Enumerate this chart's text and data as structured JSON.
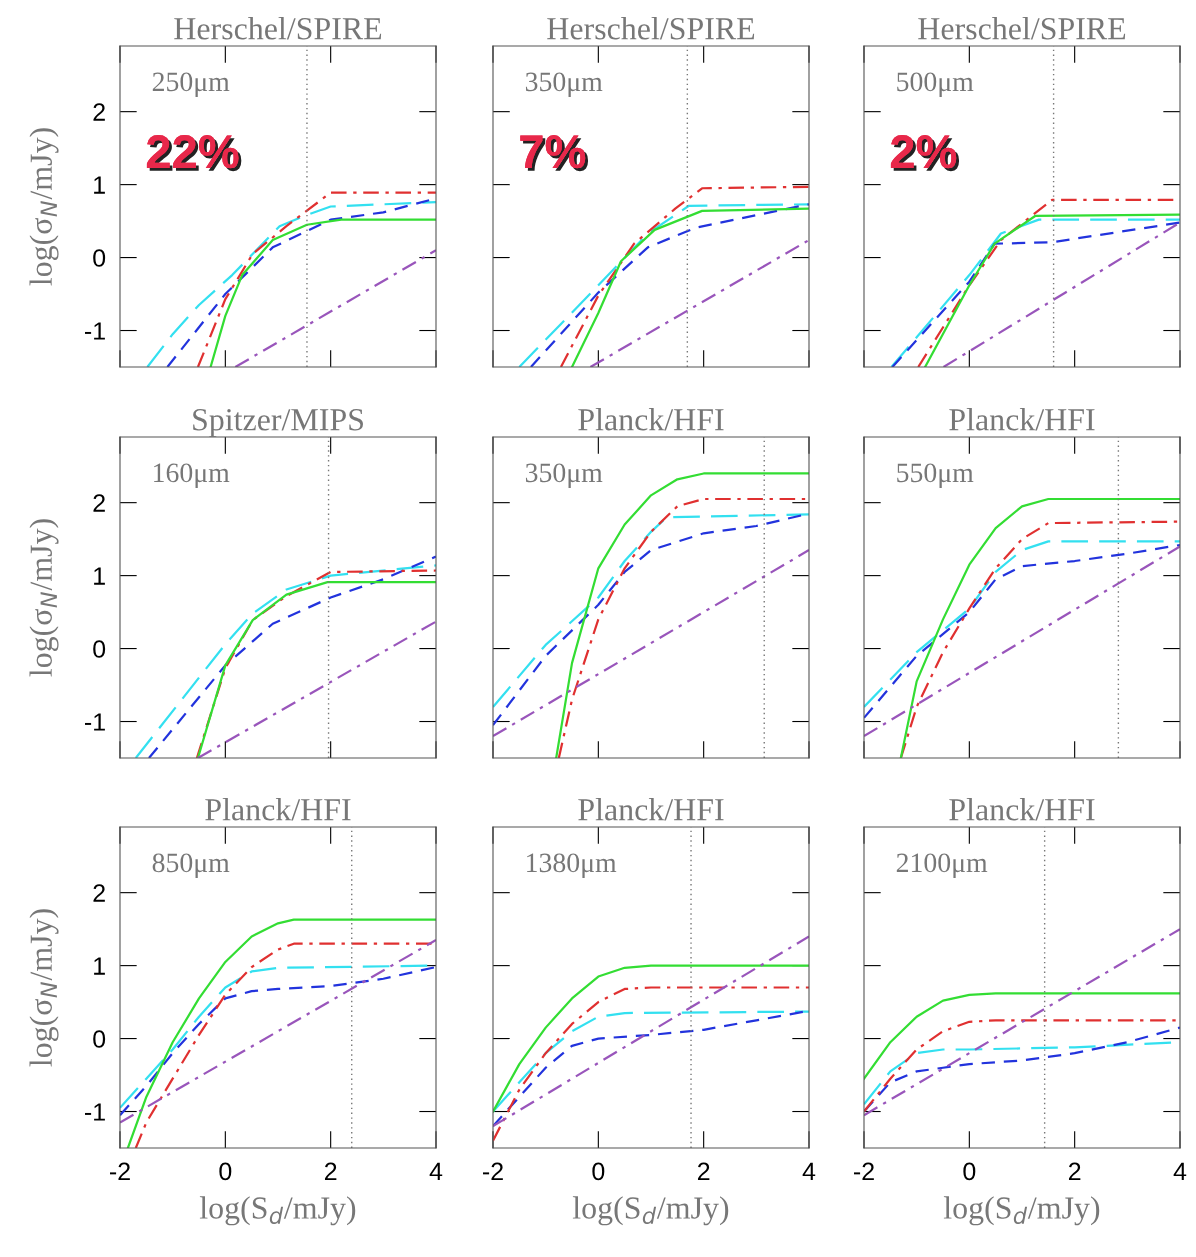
{
  "chart_data": [
    {
      "type": "line",
      "title": "Herschel/SPIRE",
      "ylabel": "log(σ$_{N}$/mJy)",
      "annotations": [
        "250μm",
        "22%"
      ],
      "xlim": [
        -2,
        4
      ],
      "ylim": [
        -1.5,
        2.9
      ],
      "xticks": [
        -2,
        0,
        2,
        4
      ],
      "yticks": [
        -1,
        0,
        1,
        2
      ],
      "tick_labels": "y",
      "ref_lines": [
        {
          "axis": "x",
          "value": 1.55,
          "color": "#777777",
          "line_style": "dotted"
        }
      ],
      "series": [
        {
          "color": "#33e0f0",
          "line_style": "longdashed",
          "x": [
            -1.48,
            -1,
            -0.5,
            0.13,
            1.03,
            1.5,
            2,
            4
          ],
          "values": [
            -1.5,
            -1.05,
            -0.65,
            -0.24,
            0.43,
            0.57,
            0.7,
            0.76
          ]
        },
        {
          "color": "#2233dd",
          "line_style": "dashed",
          "x": [
            -1.1,
            0,
            0.9,
            2,
            3,
            4
          ],
          "values": [
            -1.5,
            -0.5,
            0.14,
            0.52,
            0.62,
            0.81
          ]
        },
        {
          "color": "#e03030",
          "line_style": "dashdot",
          "x": [
            -0.52,
            0,
            0.52,
            1.16,
            2,
            4
          ],
          "values": [
            -1.5,
            -0.57,
            0.05,
            0.43,
            0.89,
            0.89
          ]
        },
        {
          "color": "#33dd33",
          "line_style": "solid",
          "x": [
            -0.28,
            0,
            0.32,
            0.9,
            1.55,
            2.2,
            4
          ],
          "values": [
            -1.5,
            -0.8,
            -0.24,
            0.24,
            0.45,
            0.52,
            0.52
          ]
        },
        {
          "color": "#9955bb",
          "line_style": "dashdot",
          "x": [
            0.19,
            4
          ],
          "values": [
            -1.5,
            0.1
          ]
        }
      ]
    },
    {
      "type": "line",
      "title": "Herschel/SPIRE",
      "annotations": [
        "350μm",
        "7%"
      ],
      "xlim": [
        -2,
        4
      ],
      "ylim": [
        -1.5,
        2.9
      ],
      "xticks": [
        -2,
        0,
        2,
        4
      ],
      "yticks": [
        -1,
        0,
        1,
        2
      ],
      "tick_labels": false,
      "ref_lines": [
        {
          "axis": "x",
          "value": 1.69,
          "color": "#777777",
          "line_style": "dotted"
        }
      ],
      "series": [
        {
          "color": "#33e0f0",
          "line_style": "longdashed",
          "x": [
            -1.5,
            0,
            0.94,
            1.72,
            4
          ],
          "values": [
            -1.5,
            -0.38,
            0.33,
            0.71,
            0.73
          ]
        },
        {
          "color": "#2233dd",
          "line_style": "dashed",
          "x": [
            -1.28,
            0,
            0.94,
            1.85,
            4
          ],
          "values": [
            -1.5,
            -0.48,
            0.14,
            0.41,
            0.73
          ]
        },
        {
          "color": "#e03030",
          "line_style": "dashdot",
          "x": [
            -0.71,
            0,
            0.68,
            1.46,
            1.97,
            4
          ],
          "values": [
            -1.5,
            -0.52,
            0.19,
            0.67,
            0.95,
            0.97
          ]
        },
        {
          "color": "#33dd33",
          "line_style": "solid",
          "x": [
            -0.5,
            0,
            0.43,
            1.07,
            1.97,
            4
          ],
          "values": [
            -1.5,
            -0.76,
            -0.05,
            0.38,
            0.64,
            0.67
          ]
        },
        {
          "color": "#9955bb",
          "line_style": "dashdot",
          "x": [
            -0.15,
            4
          ],
          "values": [
            -1.5,
            0.24
          ]
        }
      ]
    },
    {
      "type": "line",
      "title": "Herschel/SPIRE",
      "annotations": [
        "500μm",
        "2%"
      ],
      "xlim": [
        -2,
        4
      ],
      "ylim": [
        -1.5,
        2.9
      ],
      "xticks": [
        -2,
        0,
        2,
        4
      ],
      "yticks": [
        -1,
        0,
        1,
        2
      ],
      "tick_labels": false,
      "ref_lines": [
        {
          "axis": "x",
          "value": 1.6,
          "color": "#777777",
          "line_style": "dotted"
        }
      ],
      "series": [
        {
          "color": "#33e0f0",
          "line_style": "longdashed",
          "x": [
            -1.48,
            0,
            0.6,
            1.32,
            4
          ],
          "values": [
            -1.5,
            -0.24,
            0.33,
            0.52,
            0.52
          ]
        },
        {
          "color": "#2233dd",
          "line_style": "dashed",
          "x": [
            -1.46,
            0,
            0.48,
            1.57,
            4
          ],
          "values": [
            -1.5,
            -0.33,
            0.19,
            0.21,
            0.48
          ]
        },
        {
          "color": "#e03030",
          "line_style": "dashdot",
          "x": [
            -0.97,
            0,
            0.6,
            1.57,
            4
          ],
          "values": [
            -1.5,
            -0.38,
            0.24,
            0.79,
            0.79
          ]
        },
        {
          "color": "#33dd33",
          "line_style": "solid",
          "x": [
            -0.84,
            0,
            0.48,
            1.25,
            4
          ],
          "values": [
            -1.5,
            -0.38,
            0.19,
            0.57,
            0.59
          ]
        },
        {
          "color": "#9955bb",
          "line_style": "dashdot",
          "x": [
            -0.49,
            4
          ],
          "values": [
            -1.5,
            0.48
          ]
        }
      ]
    },
    {
      "type": "line",
      "title": "Spitzer/MIPS",
      "ylabel": "log(σ$_{N}$/mJy)",
      "annotations": [
        "160μm"
      ],
      "xlim": [
        -2,
        4
      ],
      "ylim": [
        -1.5,
        2.9
      ],
      "xticks": [
        -2,
        0,
        2,
        4
      ],
      "yticks": [
        -1,
        0,
        1,
        2
      ],
      "tick_labels": "y",
      "ref_lines": [
        {
          "axis": "x",
          "value": 1.96,
          "color": "#777777",
          "line_style": "dotted"
        }
      ],
      "series": [
        {
          "color": "#33e0f0",
          "line_style": "longdashed",
          "x": [
            -1.7,
            0,
            0.52,
            1.16,
            2,
            4
          ],
          "values": [
            -1.5,
            0.06,
            0.48,
            0.81,
            1.0,
            1.14
          ]
        },
        {
          "color": "#2233dd",
          "line_style": "dashed",
          "x": [
            -1.45,
            0,
            0.9,
            2,
            3,
            4
          ],
          "values": [
            -1.5,
            -0.23,
            0.34,
            0.7,
            0.95,
            1.26
          ]
        },
        {
          "color": "#e03030",
          "line_style": "dashdot",
          "x": [
            -0.54,
            0,
            0.52,
            1.16,
            2,
            4
          ],
          "values": [
            -1.5,
            -0.27,
            0.39,
            0.72,
            1.05,
            1.07
          ]
        },
        {
          "color": "#33dd33",
          "line_style": "solid",
          "x": [
            -0.52,
            0,
            0.52,
            1.16,
            1.94,
            4
          ],
          "values": [
            -1.5,
            -0.23,
            0.39,
            0.74,
            0.91,
            0.91
          ]
        },
        {
          "color": "#9955bb",
          "line_style": "dashdot",
          "x": [
            -0.52,
            4
          ],
          "values": [
            -1.5,
            0.37
          ]
        }
      ]
    },
    {
      "type": "line",
      "title": "Planck/HFI",
      "annotations": [
        "350μm"
      ],
      "xlim": [
        -2,
        4
      ],
      "ylim": [
        -1.5,
        2.9
      ],
      "xticks": [
        -2,
        0,
        2,
        4
      ],
      "yticks": [
        -1,
        0,
        1,
        2
      ],
      "tick_labels": false,
      "ref_lines": [
        {
          "axis": "x",
          "value": 3.15,
          "color": "#777777",
          "line_style": "dotted"
        }
      ],
      "series": [
        {
          "color": "#33e0f0",
          "line_style": "longdashed",
          "x": [
            -2,
            -1,
            0,
            0.5,
            1,
            1.3,
            4
          ],
          "values": [
            -0.8,
            0.05,
            0.7,
            1.2,
            1.6,
            1.8,
            1.84
          ]
        },
        {
          "color": "#2233dd",
          "line_style": "dashed",
          "x": [
            -2,
            -1,
            0,
            0.5,
            1,
            2,
            3,
            4
          ],
          "values": [
            -1.05,
            -0.1,
            0.6,
            1.05,
            1.35,
            1.58,
            1.68,
            1.85
          ]
        },
        {
          "color": "#e03030",
          "line_style": "dashdot",
          "x": [
            -0.75,
            -0.5,
            0,
            0.5,
            1,
            1.5,
            2,
            4
          ],
          "values": [
            -1.5,
            -0.7,
            0.4,
            1.1,
            1.6,
            1.95,
            2.05,
            2.05
          ]
        },
        {
          "color": "#33dd33",
          "line_style": "solid",
          "x": [
            -0.8,
            -0.5,
            0,
            0.5,
            1,
            1.5,
            2,
            4
          ],
          "values": [
            -1.5,
            -0.2,
            1.1,
            1.7,
            2.1,
            2.32,
            2.4,
            2.4
          ]
        },
        {
          "color": "#9955bb",
          "line_style": "dashdot",
          "x": [
            -2,
            4
          ],
          "values": [
            -1.2,
            1.35
          ]
        }
      ]
    },
    {
      "type": "line",
      "title": "Planck/HFI",
      "annotations": [
        "550μm"
      ],
      "xlim": [
        -2,
        4
      ],
      "ylim": [
        -1.5,
        2.9
      ],
      "xticks": [
        -2,
        0,
        2,
        4
      ],
      "yticks": [
        -1,
        0,
        1,
        2
      ],
      "tick_labels": false,
      "ref_lines": [
        {
          "axis": "x",
          "value": 2.83,
          "color": "#777777",
          "line_style": "dotted"
        }
      ],
      "series": [
        {
          "color": "#33e0f0",
          "line_style": "longdashed",
          "x": [
            -2,
            -1,
            0,
            0.5,
            1,
            1.5,
            4
          ],
          "values": [
            -0.8,
            -0.05,
            0.55,
            1.05,
            1.35,
            1.47,
            1.47
          ]
        },
        {
          "color": "#2233dd",
          "line_style": "dashed",
          "x": [
            -2,
            -1,
            0,
            0.5,
            1,
            2,
            3,
            4
          ],
          "values": [
            -0.95,
            -0.1,
            0.5,
            0.95,
            1.13,
            1.2,
            1.3,
            1.42
          ]
        },
        {
          "color": "#e03030",
          "line_style": "dashdot",
          "x": [
            -1.3,
            -1,
            -0.5,
            0,
            0.5,
            1,
            1.5,
            4
          ],
          "values": [
            -1.5,
            -0.8,
            -0.05,
            0.55,
            1.1,
            1.5,
            1.72,
            1.74
          ]
        },
        {
          "color": "#33dd33",
          "line_style": "solid",
          "x": [
            -1.3,
            -1,
            -0.5,
            0,
            0.5,
            1,
            1.5,
            4
          ],
          "values": [
            -1.5,
            -0.45,
            0.4,
            1.15,
            1.65,
            1.95,
            2.05,
            2.05
          ]
        },
        {
          "color": "#9955bb",
          "line_style": "dashdot",
          "x": [
            -2,
            4
          ],
          "values": [
            -1.2,
            1.4
          ]
        }
      ]
    },
    {
      "type": "line",
      "title": "Planck/HFI",
      "xlabel": "log(S$_{d}$/mJy)",
      "ylabel": "log(σ$_{N}$/mJy)",
      "annotations": [
        "850μm"
      ],
      "xlim": [
        -2,
        4
      ],
      "ylim": [
        -1.5,
        2.9
      ],
      "xticks": [
        -2,
        0,
        2,
        4
      ],
      "yticks": [
        -1,
        0,
        1,
        2
      ],
      "ref_lines": [
        {
          "axis": "x",
          "value": 2.4,
          "color": "#777777",
          "line_style": "dotted"
        }
      ],
      "series": [
        {
          "color": "#33e0f0",
          "line_style": "longdashed",
          "x": [
            -2,
            -1.5,
            -1,
            -0.5,
            0,
            0.5,
            1,
            4
          ],
          "values": [
            -0.95,
            -0.55,
            -0.15,
            0.3,
            0.7,
            0.92,
            0.97,
            1.0
          ]
        },
        {
          "color": "#2233dd",
          "line_style": "dashed",
          "x": [
            -2,
            -1.5,
            -1,
            -0.5,
            0,
            0.5,
            1,
            2,
            3,
            4
          ],
          "values": [
            -1.05,
            -0.65,
            -0.2,
            0.2,
            0.55,
            0.65,
            0.68,
            0.72,
            0.82,
            0.98
          ]
        },
        {
          "color": "#e03030",
          "line_style": "dashdot",
          "x": [
            -1.7,
            -1.5,
            -1,
            -0.5,
            0,
            0.5,
            1,
            1.3,
            4
          ],
          "values": [
            -1.5,
            -1.15,
            -0.55,
            0.05,
            0.6,
            0.98,
            1.22,
            1.3,
            1.3
          ]
        },
        {
          "color": "#33dd33",
          "line_style": "solid",
          "x": [
            -1.85,
            -1.5,
            -1,
            -0.5,
            0,
            0.5,
            1,
            1.3,
            4
          ],
          "values": [
            -1.5,
            -0.8,
            -0.05,
            0.55,
            1.05,
            1.4,
            1.58,
            1.63,
            1.63
          ]
        },
        {
          "color": "#9955bb",
          "line_style": "dashdot",
          "x": [
            -2,
            4
          ],
          "values": [
            -1.15,
            1.35
          ]
        }
      ]
    },
    {
      "type": "line",
      "title": "Planck/HFI",
      "xlabel": "log(S$_{d}$/mJy)",
      "annotations": [
        "1380μm"
      ],
      "xlim": [
        -2,
        4
      ],
      "ylim": [
        -1.5,
        2.9
      ],
      "xticks": [
        -2,
        0,
        2,
        4
      ],
      "yticks": [
        -1,
        0,
        1,
        2
      ],
      "tick_labels": "x",
      "ref_lines": [
        {
          "axis": "x",
          "value": 1.76,
          "color": "#777777",
          "line_style": "dotted"
        }
      ],
      "series": [
        {
          "color": "#33e0f0",
          "line_style": "longdashed",
          "x": [
            -2,
            -1.5,
            -1,
            -0.5,
            0,
            0.5,
            4
          ],
          "values": [
            -1.0,
            -0.6,
            -0.2,
            0.1,
            0.3,
            0.35,
            0.37
          ]
        },
        {
          "color": "#2233dd",
          "line_style": "dashed",
          "x": [
            -2,
            -1.5,
            -1,
            -0.5,
            0,
            1,
            2,
            3,
            4
          ],
          "values": [
            -1.2,
            -0.8,
            -0.4,
            -0.1,
            0.0,
            0.05,
            0.12,
            0.25,
            0.38
          ]
        },
        {
          "color": "#e03030",
          "line_style": "dashdot",
          "x": [
            -2,
            -1.5,
            -1,
            -0.5,
            0,
            0.5,
            1,
            4
          ],
          "values": [
            -1.4,
            -0.7,
            -0.2,
            0.2,
            0.5,
            0.68,
            0.7,
            0.7
          ]
        },
        {
          "color": "#33dd33",
          "line_style": "solid",
          "x": [
            -2,
            -1.5,
            -1,
            -0.5,
            0,
            0.5,
            1,
            4
          ],
          "values": [
            -1.0,
            -0.35,
            0.15,
            0.55,
            0.85,
            0.97,
            1.0,
            1.0
          ]
        },
        {
          "color": "#9955bb",
          "line_style": "dashdot",
          "x": [
            -2,
            4
          ],
          "values": [
            -1.2,
            1.4
          ]
        }
      ]
    },
    {
      "type": "line",
      "title": "Planck/HFI",
      "xlabel": "log(S$_{d}$/mJy)",
      "annotations": [
        "2100μm"
      ],
      "xlim": [
        -2,
        4
      ],
      "ylim": [
        -1.5,
        2.9
      ],
      "xticks": [
        -2,
        0,
        2,
        4
      ],
      "yticks": [
        -1,
        0,
        1,
        2
      ],
      "tick_labels": "x",
      "ref_lines": [
        {
          "axis": "x",
          "value": 1.43,
          "color": "#777777",
          "line_style": "dotted"
        }
      ],
      "series": [
        {
          "color": "#33e0f0",
          "line_style": "longdashed",
          "x": [
            -2,
            -1.5,
            -1,
            -0.5,
            0,
            2,
            4
          ],
          "values": [
            -0.9,
            -0.45,
            -0.2,
            -0.15,
            -0.15,
            -0.12,
            -0.05
          ]
        },
        {
          "color": "#2233dd",
          "line_style": "dashed",
          "x": [
            -2,
            -1.5,
            -1,
            -0.5,
            0,
            1,
            2,
            3,
            4
          ],
          "values": [
            -1.0,
            -0.6,
            -0.45,
            -0.4,
            -0.35,
            -0.3,
            -0.2,
            -0.05,
            0.15
          ]
        },
        {
          "color": "#e03030",
          "line_style": "dashdot",
          "x": [
            -2,
            -1.5,
            -1,
            -0.5,
            0,
            0.5,
            4
          ],
          "values": [
            -1.0,
            -0.55,
            -0.15,
            0.1,
            0.23,
            0.25,
            0.25
          ]
        },
        {
          "color": "#33dd33",
          "line_style": "solid",
          "x": [
            -2,
            -1.5,
            -1,
            -0.5,
            0,
            0.5,
            4
          ],
          "values": [
            -0.55,
            -0.05,
            0.3,
            0.52,
            0.6,
            0.62,
            0.62
          ]
        },
        {
          "color": "#9955bb",
          "line_style": "dashdot",
          "x": [
            -2,
            4
          ],
          "values": [
            -1.05,
            1.5
          ]
        }
      ]
    }
  ]
}
